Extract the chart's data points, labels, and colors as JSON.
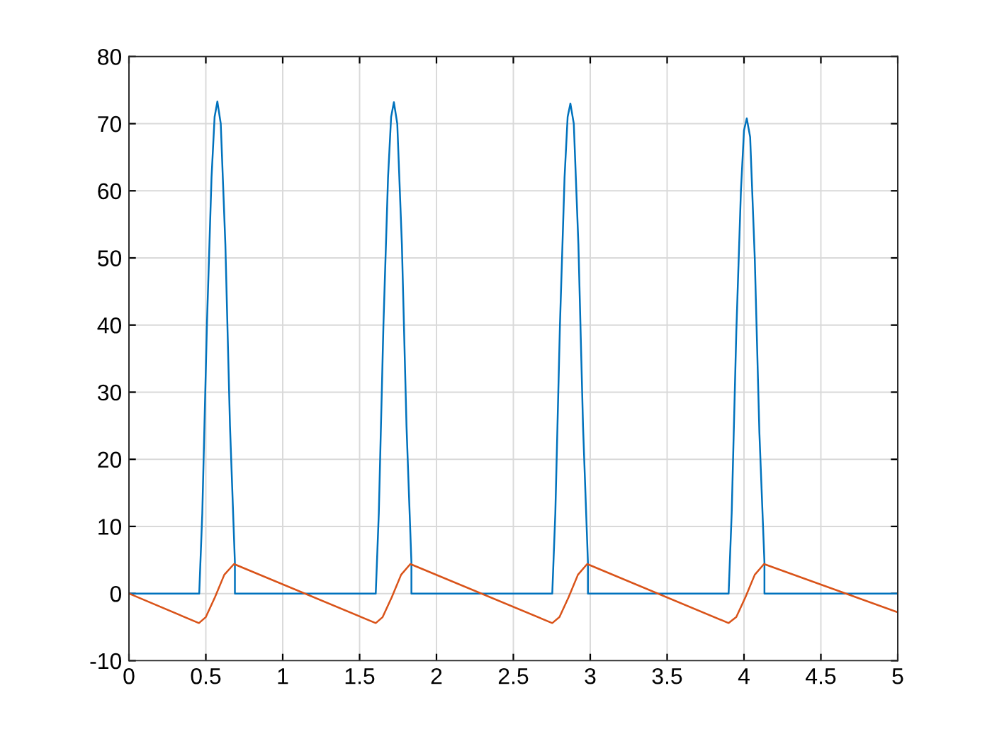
{
  "chart_data": {
    "type": "line",
    "xlim": [
      0,
      5
    ],
    "ylim": [
      -10,
      80
    ],
    "xticks": [
      0,
      0.5,
      1,
      1.5,
      2,
      2.5,
      3,
      3.5,
      4,
      4.5,
      5
    ],
    "yticks": [
      -10,
      0,
      10,
      20,
      30,
      40,
      50,
      60,
      70,
      80
    ],
    "grid": true,
    "series": [
      {
        "color": "#0072bd",
        "x": [
          0,
          0.457,
          0.477,
          0.507,
          0.537,
          0.557,
          0.575,
          0.597,
          0.627,
          0.657,
          0.689,
          0.689,
          1.605,
          1.625,
          1.655,
          1.685,
          1.705,
          1.723,
          1.745,
          1.775,
          1.805,
          1.837,
          1.837,
          2.753,
          2.773,
          2.803,
          2.833,
          2.853,
          2.871,
          2.893,
          2.923,
          2.953,
          2.985,
          2.985,
          3.9,
          3.92,
          3.95,
          3.98,
          4.0,
          4.018,
          4.04,
          4.07,
          4.1,
          4.133,
          4.133,
          5
        ],
        "values": [
          0,
          0,
          12,
          40,
          62,
          71,
          73.3,
          70,
          52,
          25,
          4.6,
          0,
          0,
          12,
          40,
          62,
          71,
          73.2,
          70,
          52,
          25,
          4.6,
          0,
          0,
          12,
          40,
          62,
          71,
          73,
          70,
          52,
          25,
          4.6,
          0,
          0,
          12,
          39,
          60,
          69,
          70.8,
          68,
          50,
          24,
          4.6,
          0,
          0
        ]
      },
      {
        "color": "#d95319",
        "x": [
          0,
          0.455,
          0.5,
          0.56,
          0.62,
          0.683,
          1.605,
          1.65,
          1.71,
          1.77,
          1.83,
          2.753,
          2.8,
          2.86,
          2.92,
          2.98,
          3.9,
          3.95,
          4.01,
          4.07,
          4.13,
          5
        ],
        "values": [
          0,
          -4.4,
          -3.5,
          -0.5,
          2.8,
          4.4,
          -4.4,
          -3.5,
          -0.5,
          2.8,
          4.4,
          -4.4,
          -3.5,
          -0.5,
          2.8,
          4.4,
          -4.4,
          -3.5,
          -0.5,
          2.8,
          4.4,
          -2.8
        ]
      }
    ]
  }
}
